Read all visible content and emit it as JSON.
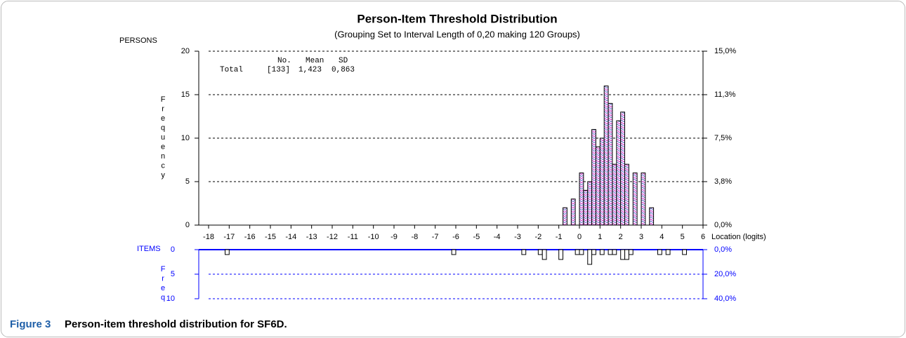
{
  "caption": {
    "label": "Figure 3",
    "text": "Person-item threshold distribution for SF6D."
  },
  "chart_data": [
    {
      "type": "bar",
      "title": "Person-Item Threshold Distribution",
      "subtitle": "(Grouping Set to Interval Length of 0,20  making 120  Groups)",
      "panel_label": "PERSONS",
      "ylabel": "Frequency",
      "xlabel": "Location (logits)",
      "stats": {
        "header": [
          "No.",
          "Mean",
          "SD"
        ],
        "row": [
          "Total",
          "[133]",
          "1,423",
          "0,863"
        ]
      },
      "x": [
        -0.7,
        -0.3,
        0.1,
        0.3,
        0.5,
        0.7,
        0.9,
        1.1,
        1.3,
        1.5,
        1.7,
        1.9,
        2.1,
        2.3,
        2.7,
        3.1,
        3.5
      ],
      "values": [
        2,
        3,
        6,
        4,
        5,
        11,
        9,
        10,
        16,
        14,
        7,
        12,
        13,
        7,
        6,
        6,
        2
      ],
      "color": "#d040d0",
      "axis_color": "#000000",
      "xlim": [
        -18,
        6
      ],
      "xticks": [
        -18,
        -17,
        -16,
        -15,
        -14,
        -13,
        -12,
        -11,
        -10,
        -9,
        -8,
        -7,
        -6,
        -5,
        -4,
        -3,
        -2,
        -1,
        0,
        1,
        2,
        3,
        4,
        5,
        6
      ],
      "ylim": [
        0,
        20
      ],
      "yticks": [
        0,
        5,
        10,
        15,
        20
      ],
      "y2lim": [
        0,
        15
      ],
      "y2ticks": [
        {
          "value": 0,
          "label": "0,0%"
        },
        {
          "value": 3.75,
          "label": "3,8%"
        },
        {
          "value": 7.5,
          "label": "7,5%"
        },
        {
          "value": 11.25,
          "label": "11,3%"
        },
        {
          "value": 15,
          "label": "15,0%"
        }
      ],
      "grid": true,
      "inverted": false
    },
    {
      "type": "bar",
      "panel_label": "ITEMS",
      "ylabel": "Freq",
      "x": [
        -17.1,
        -6.1,
        -2.7,
        -1.9,
        -1.7,
        -0.9,
        -0.1,
        0.1,
        0.5,
        0.7,
        1.1,
        1.5,
        1.7,
        2.1,
        2.3,
        2.5,
        3.9,
        4.3,
        5.1
      ],
      "values": [
        1,
        1,
        1,
        1,
        2,
        2,
        1,
        1,
        3,
        1,
        1,
        1,
        1,
        2,
        2,
        1,
        1,
        1,
        1
      ],
      "color": "#ffffff",
      "axis_color": "#0000ff",
      "xlim": [
        -18,
        6
      ],
      "ylim": [
        0,
        10
      ],
      "yticks": [
        0,
        5,
        10
      ],
      "y2lim": [
        0,
        40
      ],
      "y2ticks": [
        {
          "value": 0,
          "label": "0,0%"
        },
        {
          "value": 20,
          "label": "20,0%"
        },
        {
          "value": 40,
          "label": "40,0%"
        }
      ],
      "grid": true,
      "inverted": true
    }
  ]
}
